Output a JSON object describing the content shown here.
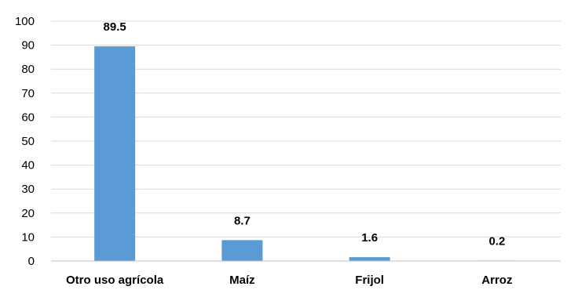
{
  "chart_data": {
    "type": "bar",
    "categories": [
      "Otro uso agrícola",
      "Maíz",
      "Frijol",
      "Arroz"
    ],
    "values": [
      89.5,
      8.7,
      1.6,
      0.2
    ],
    "data_labels": [
      "89.5",
      "8.7",
      "1.6",
      "0.2"
    ],
    "ylim": [
      0,
      100
    ],
    "yticks": [
      0,
      10,
      20,
      30,
      40,
      50,
      60,
      70,
      80,
      90,
      100
    ],
    "grid": true,
    "bar_color": "#5b9bd5",
    "title": "",
    "xlabel": "",
    "ylabel": ""
  }
}
